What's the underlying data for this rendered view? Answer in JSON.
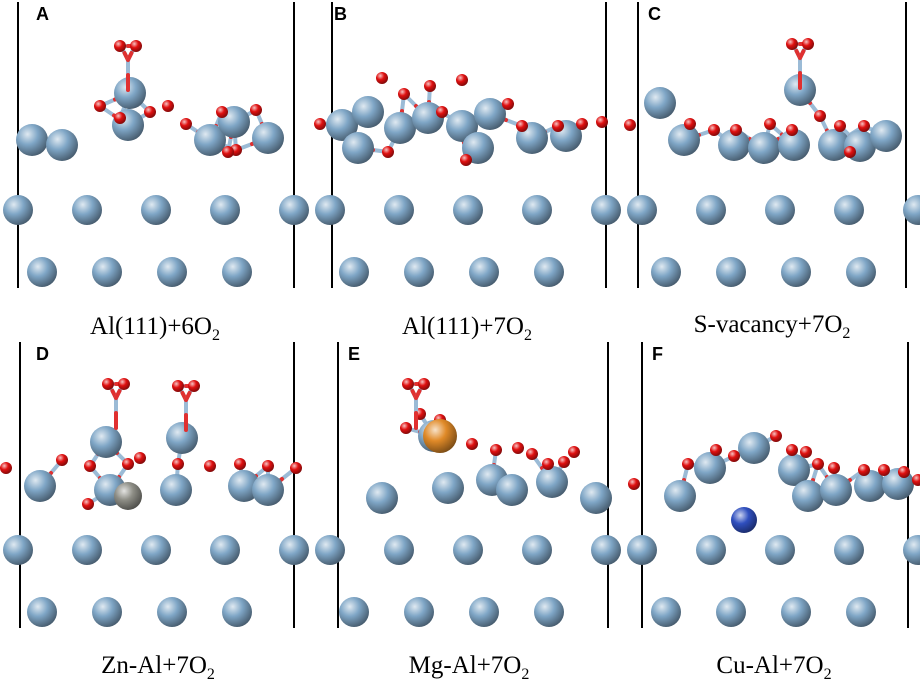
{
  "colors": {
    "aluminum": "#7fa6c6",
    "oxygen": "#e01010",
    "zinc": "#8e8e86",
    "magnesium": "#e08a28",
    "copper": "#2f4fbf",
    "cell_line": "#000000"
  },
  "panels": [
    {
      "letter": "A",
      "caption": "Al(111)+6O",
      "subscript": "2",
      "dopant": null
    },
    {
      "letter": "B",
      "caption": "Al(111)+7O",
      "subscript": "2",
      "dopant": null
    },
    {
      "letter": "C",
      "caption": "S-vacancy+7O",
      "subscript": "2",
      "dopant": null
    },
    {
      "letter": "D",
      "caption": "Zn-Al+7O",
      "subscript": "2",
      "dopant": "zinc"
    },
    {
      "letter": "E",
      "caption": "Mg-Al+7O",
      "subscript": "2",
      "dopant": "magnesium"
    },
    {
      "letter": "F",
      "caption": "Cu-Al+7O",
      "subscript": "2",
      "dopant": "copper"
    }
  ]
}
